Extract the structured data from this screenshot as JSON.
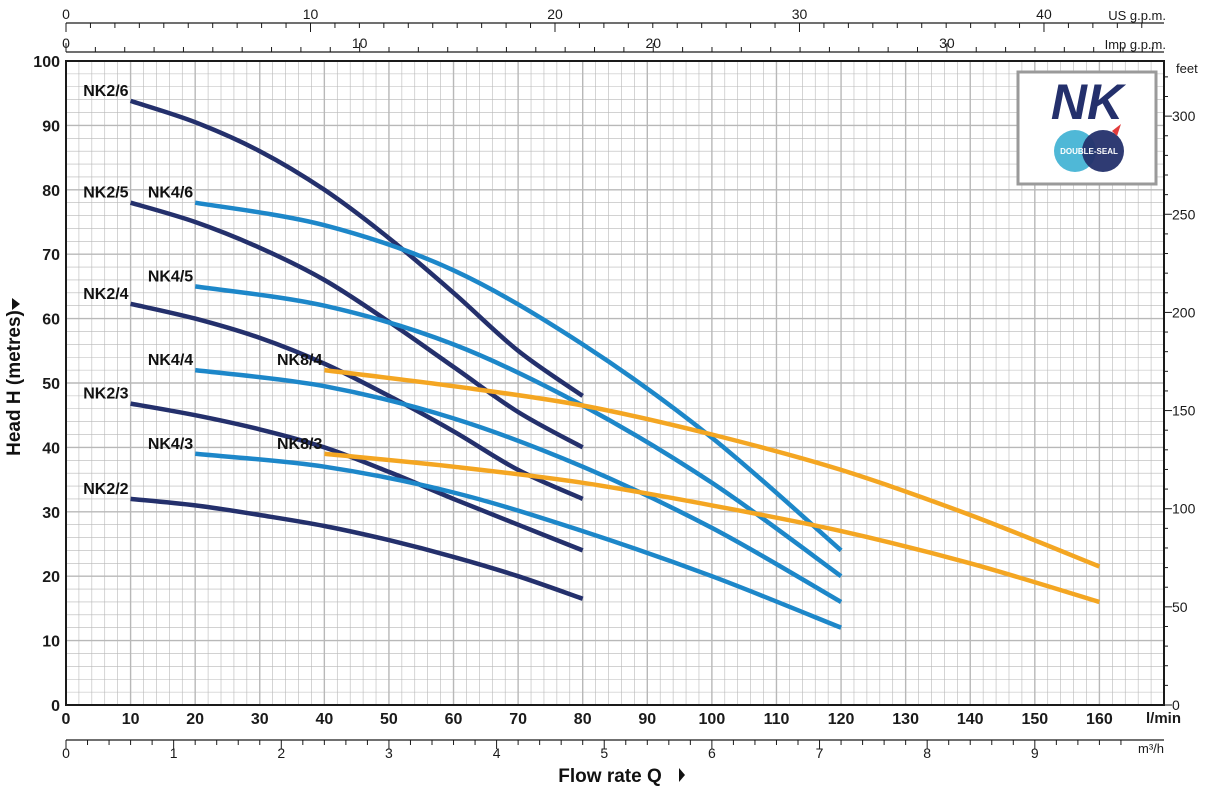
{
  "chart_data": {
    "type": "line",
    "title": "",
    "ylabel": "Head H (metres)",
    "xlabel": "Flow rate Q",
    "x_unit": "l/min",
    "xlim": [
      0,
      170
    ],
    "ylim": [
      0,
      100
    ],
    "x_ticks": [
      0,
      10,
      20,
      30,
      40,
      50,
      60,
      70,
      80,
      90,
      100,
      110,
      120,
      130,
      140,
      150,
      160
    ],
    "y_ticks": [
      0,
      10,
      20,
      30,
      40,
      50,
      60,
      70,
      80,
      90,
      100
    ],
    "secondary_axes": {
      "us_gpm": {
        "label": "US g.p.m.",
        "ticks": [
          0,
          10,
          20,
          30,
          40
        ]
      },
      "imp_gpm": {
        "label": "Imp g.p.m.",
        "ticks": [
          0,
          10,
          20,
          30
        ]
      },
      "m3h": {
        "label": "m³/h",
        "ticks": [
          0,
          1,
          2,
          3,
          4,
          5,
          6,
          7,
          8,
          9
        ]
      },
      "feet": {
        "label": "feet",
        "ticks": [
          0,
          50,
          100,
          150,
          200,
          250,
          300
        ]
      }
    },
    "series": [
      {
        "name": "NK2/2",
        "family": "NK2",
        "x": [
          10,
          20,
          30,
          40,
          50,
          60,
          70,
          80
        ],
        "y": [
          32,
          31,
          29.5,
          27.8,
          25.6,
          23,
          20,
          16.5
        ]
      },
      {
        "name": "NK2/3",
        "family": "NK2",
        "x": [
          10,
          20,
          30,
          40,
          50,
          60,
          70,
          80
        ],
        "y": [
          46.8,
          45,
          42.8,
          40,
          36.2,
          32,
          28,
          24
        ]
      },
      {
        "name": "NK2/4",
        "family": "NK2",
        "x": [
          10,
          20,
          30,
          40,
          50,
          60,
          70,
          80
        ],
        "y": [
          62.3,
          60,
          57,
          53,
          48,
          42.5,
          36.5,
          32
        ]
      },
      {
        "name": "NK2/5",
        "family": "NK2",
        "x": [
          10,
          20,
          30,
          40,
          50,
          60,
          70,
          80
        ],
        "y": [
          78,
          75,
          71,
          66,
          59.5,
          52.5,
          45.5,
          40
        ]
      },
      {
        "name": "NK2/6",
        "family": "NK2",
        "x": [
          10,
          20,
          30,
          40,
          50,
          60,
          70,
          80
        ],
        "y": [
          93.8,
          90.5,
          86,
          80,
          72.5,
          64,
          55,
          48
        ]
      },
      {
        "name": "NK4/3",
        "family": "NK4",
        "x": [
          20,
          40,
          60,
          80,
          100,
          120
        ],
        "y": [
          39,
          37,
          33,
          27,
          20,
          12
        ]
      },
      {
        "name": "NK4/4",
        "family": "NK4",
        "x": [
          20,
          40,
          60,
          80,
          100,
          120
        ],
        "y": [
          52,
          49.5,
          44.5,
          37,
          27.5,
          16
        ]
      },
      {
        "name": "NK4/5",
        "family": "NK4",
        "x": [
          20,
          40,
          60,
          80,
          100,
          120
        ],
        "y": [
          65,
          62,
          56,
          46.5,
          34.5,
          20
        ]
      },
      {
        "name": "NK4/6",
        "family": "NK4",
        "x": [
          20,
          40,
          60,
          80,
          100,
          120
        ],
        "y": [
          78,
          74.5,
          67.5,
          56,
          41.5,
          24
        ]
      },
      {
        "name": "NK8/3",
        "family": "NK8",
        "x": [
          40,
          60,
          80,
          100,
          120,
          140,
          160
        ],
        "y": [
          39,
          37,
          34.5,
          31,
          27,
          22,
          16
        ]
      },
      {
        "name": "NK8/4",
        "family": "NK8",
        "x": [
          40,
          60,
          80,
          100,
          120,
          140,
          160
        ],
        "y": [
          52,
          49.5,
          46.5,
          42,
          36.5,
          29.5,
          21.5
        ]
      }
    ],
    "colors": {
      "NK2": "#24306c",
      "NK4": "#1d87c9",
      "NK8": "#f4a622",
      "grid": "#b8b8b8",
      "axis": "#1a1a1a"
    },
    "grid": true
  },
  "logo": {
    "brand": "NK",
    "badge": "DOUBLE-SEAL"
  }
}
